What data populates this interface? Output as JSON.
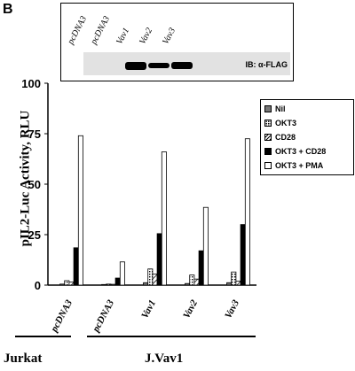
{
  "panel": "B",
  "blot": {
    "lanes": [
      "pcDNA3",
      "pcDNA3",
      "Vav1",
      "Vav2",
      "Vav3"
    ],
    "ib_label": "IB: α-FLAG",
    "band_intensity": [
      0,
      0,
      1.0,
      0.55,
      0.9
    ]
  },
  "chart_data": {
    "type": "bar",
    "ylabel": "pIL2-Luc Activity, RLU",
    "ylim": [
      0,
      100
    ],
    "yticks": [
      0,
      25,
      50,
      75,
      100
    ],
    "categories": [
      "pcDNA3",
      "pcDNA3",
      "Vav1",
      "Vav2",
      "Vav3"
    ],
    "groups": [
      {
        "label": "Jurkat",
        "categories": [
          0
        ]
      },
      {
        "label": "J.Vav1",
        "categories": [
          1,
          2,
          3,
          4
        ]
      }
    ],
    "legend_position": "right",
    "series": [
      {
        "name": "Nil",
        "values": [
          0.5,
          0.3,
          1.2,
          0.8,
          1.2
        ],
        "fill": "#777777"
      },
      {
        "name": "OKT3",
        "values": [
          2.2,
          0.5,
          8.0,
          5.0,
          6.5
        ],
        "fill": "dots"
      },
      {
        "name": "CD28",
        "values": [
          1.5,
          0.4,
          5.5,
          3.0,
          2.0
        ],
        "fill": "diagonal"
      },
      {
        "name": "OKT3 + CD28",
        "values": [
          18.5,
          3.5,
          25.5,
          17.0,
          30.0
        ],
        "fill": "#000000"
      },
      {
        "name": "OKT3 + PMA",
        "values": [
          74.0,
          11.5,
          66.0,
          38.5,
          72.5
        ],
        "fill": "#ffffff"
      }
    ]
  }
}
